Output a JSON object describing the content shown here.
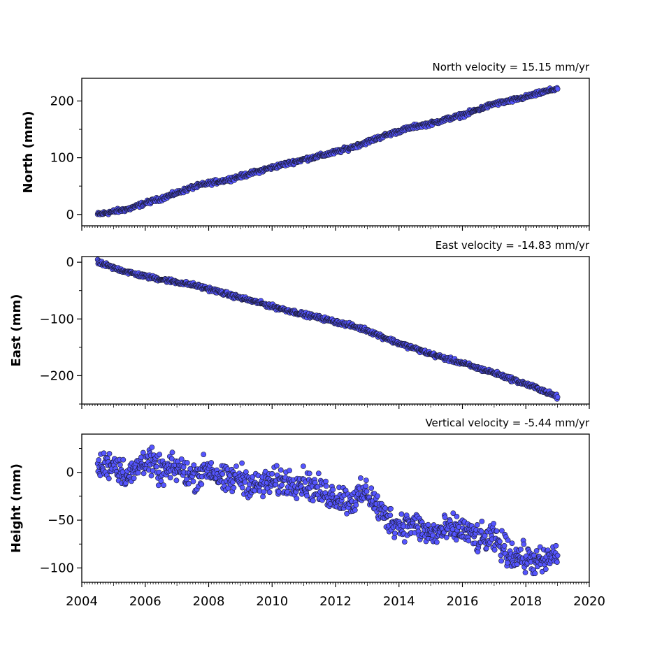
{
  "chart_data": [
    {
      "type": "scatter",
      "title": "North velocity = 15.15 mm/yr",
      "ylabel": "North (mm)",
      "xlim": [
        2004,
        2020
      ],
      "ylim": [
        -20,
        240
      ],
      "yticks": [
        0,
        100,
        200
      ],
      "xticks": [
        2004,
        2006,
        2008,
        2010,
        2012,
        2014,
        2016,
        2018,
        2020
      ],
      "xtick_labels_shown": false,
      "series": [
        {
          "x": [
            2004.5,
            2005.0,
            2005.5,
            2006.0,
            2006.5,
            2007.0,
            2007.5,
            2008.0,
            2008.5,
            2009.0,
            2009.5,
            2010.0,
            2010.5,
            2011.0,
            2011.5,
            2012.0,
            2012.5,
            2013.0,
            2013.5,
            2014.0,
            2014.5,
            2015.0,
            2015.5,
            2016.0,
            2016.5,
            2017.0,
            2017.5,
            2018.0,
            2018.5,
            2019.0
          ],
          "y": [
            0,
            5,
            10,
            20,
            28,
            38,
            48,
            55,
            60,
            67,
            75,
            83,
            90,
            97,
            103,
            110,
            118,
            128,
            138,
            147,
            155,
            160,
            168,
            175,
            185,
            195,
            200,
            207,
            215,
            222
          ],
          "spread": 3
        }
      ],
      "grid": false
    },
    {
      "type": "scatter",
      "title": "East velocity = -14.83 mm/yr",
      "ylabel": "East (mm)",
      "xlim": [
        2004,
        2020
      ],
      "ylim": [
        -250,
        10
      ],
      "yticks": [
        0,
        -100,
        -200
      ],
      "xticks": [
        2004,
        2006,
        2008,
        2010,
        2012,
        2014,
        2016,
        2018,
        2020
      ],
      "xtick_labels_shown": false,
      "series": [
        {
          "x": [
            2004.5,
            2005.0,
            2005.5,
            2006.0,
            2006.5,
            2007.0,
            2007.5,
            2008.0,
            2008.5,
            2009.0,
            2009.5,
            2010.0,
            2010.5,
            2011.0,
            2011.5,
            2012.0,
            2012.5,
            2013.0,
            2013.5,
            2014.0,
            2014.5,
            2015.0,
            2015.5,
            2016.0,
            2016.5,
            2017.0,
            2017.5,
            2018.0,
            2018.5,
            2019.0
          ],
          "y": [
            0,
            -10,
            -18,
            -25,
            -30,
            -35,
            -40,
            -47,
            -55,
            -63,
            -70,
            -78,
            -85,
            -92,
            -98,
            -105,
            -112,
            -120,
            -132,
            -143,
            -152,
            -162,
            -170,
            -178,
            -187,
            -195,
            -205,
            -215,
            -225,
            -238
          ],
          "spread": 3
        }
      ],
      "grid": false
    },
    {
      "type": "scatter",
      "title": "Vertical velocity = -5.44 mm/yr",
      "ylabel": "Height (mm)",
      "xlabel": "",
      "xlim": [
        2004,
        2020
      ],
      "ylim": [
        -115,
        40
      ],
      "yticks": [
        0,
        -50,
        -100
      ],
      "xticks": [
        2004,
        2006,
        2008,
        2010,
        2012,
        2014,
        2016,
        2018,
        2020
      ],
      "xtick_labels": [
        "2004",
        "2006",
        "2008",
        "2010",
        "2012",
        "2014",
        "2016",
        "2018",
        "2020"
      ],
      "series": [
        {
          "x": [
            2004.5,
            2005.0,
            2005.5,
            2006.0,
            2006.5,
            2007.0,
            2007.5,
            2008.0,
            2008.5,
            2009.0,
            2009.5,
            2010.0,
            2010.5,
            2011.0,
            2011.5,
            2012.0,
            2012.5,
            2013.0,
            2013.5,
            2014.0,
            2014.5,
            2015.0,
            2015.5,
            2016.0,
            2016.5,
            2017.0,
            2017.5,
            2018.0,
            2018.5,
            2019.0
          ],
          "y": [
            5,
            10,
            -5,
            15,
            0,
            5,
            -5,
            5,
            -10,
            -5,
            -15,
            -10,
            -10,
            -10,
            -20,
            -25,
            -30,
            -20,
            -45,
            -55,
            -55,
            -65,
            -60,
            -60,
            -70,
            -70,
            -85,
            -90,
            -95,
            -85
          ],
          "spread": 12
        }
      ],
      "grid": false
    }
  ],
  "colors": {
    "marker_fill": "#5555ff",
    "marker_edge": "#1a1a2e",
    "axes": "#000000"
  }
}
